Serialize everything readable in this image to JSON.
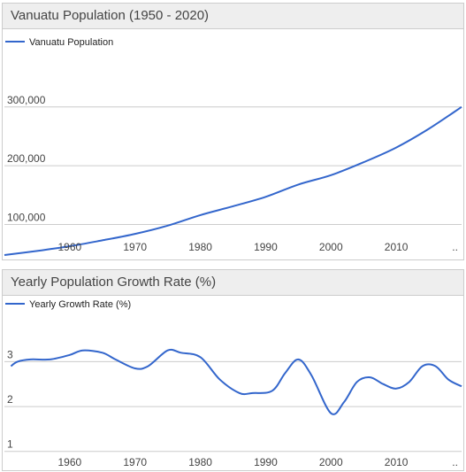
{
  "colors": {
    "series": "#3366cc",
    "grid": "#cccccc",
    "text": "#444444",
    "title_bg": "#eeeeee"
  },
  "charts": [
    {
      "title": "Vanuatu Population (1950 - 2020)",
      "legend": "Vanuatu Population",
      "chart_data": {
        "type": "line",
        "title": "Vanuatu Population (1950 - 2020)",
        "xlabel": "",
        "ylabel": "",
        "xlim": [
          1950,
          2020
        ],
        "ylim": [
          48000,
          360000
        ],
        "grid": true,
        "legend_position": "top-left",
        "x_ticks": [
          {
            "value": 1960,
            "label": "1960"
          },
          {
            "value": 1970,
            "label": "1970"
          },
          {
            "value": 1980,
            "label": "1980"
          },
          {
            "value": 1990,
            "label": "1990"
          },
          {
            "value": 2000,
            "label": "2000"
          },
          {
            "value": 2010,
            "label": "2010"
          },
          {
            "value": 2019,
            "label": ".."
          }
        ],
        "y_ticks": [
          {
            "value": 100000,
            "label": "100,000"
          },
          {
            "value": 200000,
            "label": "200,000"
          },
          {
            "value": 300000,
            "label": "300,000"
          }
        ],
        "series": [
          {
            "name": "Vanuatu Population",
            "x": [
              1950,
              1955,
              1960,
              1965,
              1970,
              1975,
              1980,
              1985,
              1990,
              1995,
              2000,
              2005,
              2010,
              2015,
              2020
            ],
            "y": [
              48000,
              55000,
              63000,
              73000,
              84000,
              98000,
              116000,
              131000,
              147000,
              168000,
              184000,
              206000,
              231000,
              263000,
              300000
            ]
          }
        ]
      }
    },
    {
      "title": "Yearly Population Growth Rate (%)",
      "legend": "Yearly Growth Rate (%)",
      "chart_data": {
        "type": "line",
        "title": "Yearly Population Growth Rate (%)",
        "xlabel": "",
        "ylabel": "",
        "xlim": [
          1950,
          2020
        ],
        "ylim": [
          0.6,
          3.6
        ],
        "grid": true,
        "legend_position": "top-left",
        "x_ticks": [
          {
            "value": 1960,
            "label": "1960"
          },
          {
            "value": 1970,
            "label": "1970"
          },
          {
            "value": 1980,
            "label": "1980"
          },
          {
            "value": 1990,
            "label": "1990"
          },
          {
            "value": 2000,
            "label": "2000"
          },
          {
            "value": 2010,
            "label": "2010"
          },
          {
            "value": 2019,
            "label": ".."
          }
        ],
        "y_ticks": [
          {
            "value": 1,
            "label": "1"
          },
          {
            "value": 2,
            "label": "2"
          },
          {
            "value": 3,
            "label": "3"
          }
        ],
        "series": [
          {
            "name": "Yearly Growth Rate (%)",
            "x": [
              1951,
              1952,
              1954,
              1957,
              1960,
              1962,
              1965,
              1967,
              1970,
              1972,
              1975,
              1977,
              1980,
              1983,
              1986,
              1988,
              1991,
              1993,
              1995,
              1997,
              2000,
              2002,
              2004,
              2006,
              2008,
              2010,
              2012,
              2014,
              2016,
              2018,
              2020
            ],
            "y": [
              2.9,
              3.0,
              3.05,
              3.05,
              3.15,
              3.25,
              3.2,
              3.05,
              2.85,
              2.9,
              3.25,
              3.2,
              3.1,
              2.6,
              2.3,
              2.3,
              2.35,
              2.75,
              3.05,
              2.7,
              1.85,
              2.1,
              2.55,
              2.65,
              2.5,
              2.4,
              2.55,
              2.9,
              2.9,
              2.6,
              2.45
            ]
          }
        ]
      }
    }
  ]
}
